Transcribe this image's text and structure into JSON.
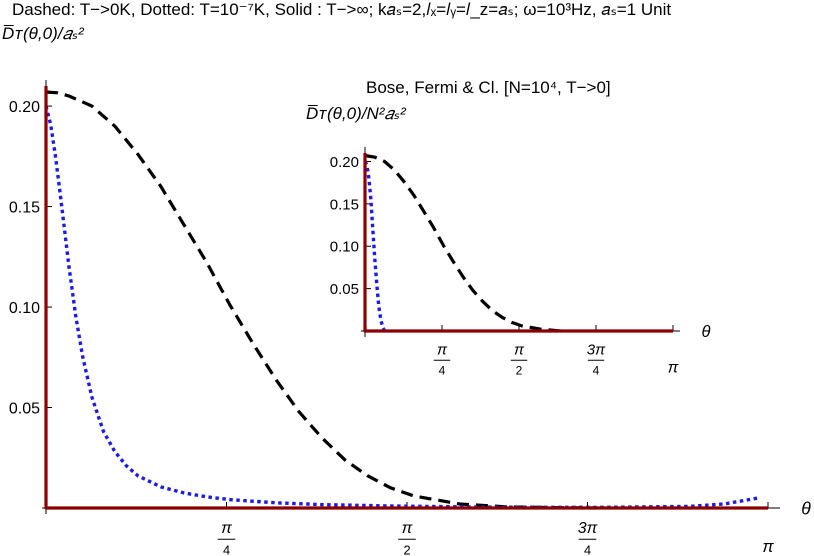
{
  "header": {
    "title": "Dashed: T−>0K, Dotted: T=10⁻⁷K, Solid : T−>∞; k𝑎ₛ=2,𝑙ₓ=𝑙ᵧ=𝑙_z=𝑎ₛ; ω=10³Hz, 𝑎ₛ=1 Unit",
    "ylabel": "D̅ᴛ(θ,0)/𝑎ₛ²"
  },
  "colors": {
    "dashed": "#000000",
    "dotted": "#1c1ce6",
    "solid": "#8b0000"
  },
  "chart_data": [
    {
      "type": "line",
      "title": "",
      "xlabel": "θ",
      "ylabel": "D̅ᴛ(θ,0)/𝑎ₛ²",
      "xlim": [
        0,
        3.1416
      ],
      "ylim": [
        0,
        0.21
      ],
      "xticks": [
        0.7854,
        1.5708,
        2.3562,
        3.1416
      ],
      "xticklabels": [
        "π/4",
        "π/2",
        "3π/4",
        "π"
      ],
      "yticks": [
        0.05,
        0.1,
        0.15,
        0.2
      ],
      "yticklabels": [
        "0.05",
        "0.10",
        "0.15",
        "0.20"
      ],
      "series": [
        {
          "style": "dashed",
          "x": [
            0,
            0.05,
            0.1,
            0.2,
            0.3,
            0.4,
            0.5,
            0.6,
            0.7,
            0.8,
            0.9,
            1.0,
            1.1,
            1.2,
            1.3,
            1.4,
            1.5,
            1.6,
            1.8,
            2.0,
            2.2,
            2.4
          ],
          "y": [
            0.207,
            0.2066,
            0.205,
            0.2,
            0.19,
            0.176,
            0.16,
            0.141,
            0.122,
            0.101,
            0.082,
            0.064,
            0.048,
            0.035,
            0.024,
            0.016,
            0.01,
            0.006,
            0.002,
            0.0006,
            0.0002,
            0.0
          ]
        },
        {
          "style": "dotted",
          "x": [
            0,
            0.02,
            0.04,
            0.06,
            0.08,
            0.1,
            0.13,
            0.16,
            0.2,
            0.25,
            0.3,
            0.35,
            0.4,
            0.5,
            0.6,
            0.7,
            0.8,
            1.0,
            1.2,
            1.5,
            1.8,
            2.0,
            2.4,
            2.8,
            2.95,
            3.05,
            3.1
          ],
          "y": [
            0.2,
            0.191,
            0.176,
            0.158,
            0.139,
            0.12,
            0.095,
            0.075,
            0.055,
            0.038,
            0.028,
            0.021,
            0.016,
            0.0105,
            0.0075,
            0.0055,
            0.0042,
            0.0026,
            0.0017,
            0.001,
            0.0006,
            0.0004,
            0.0003,
            0.0008,
            0.002,
            0.004,
            0.005
          ]
        },
        {
          "style": "solid",
          "x": [
            0,
            0.0001,
            3.1416
          ],
          "y": [
            0.21,
            0,
            0
          ]
        }
      ]
    },
    {
      "type": "line",
      "title": "Bose, Fermi   & Cl. [N=10⁴, T−>0]",
      "xlabel": "θ",
      "ylabel": "D̅ᴛ(θ,0)/N²𝑎ₛ²",
      "xlim": [
        0,
        3.1416
      ],
      "ylim": [
        0,
        0.21
      ],
      "xticks": [
        0.7854,
        1.5708,
        2.3562,
        3.1416
      ],
      "xticklabels": [
        "π/4",
        "π/2",
        "3π/4",
        "π"
      ],
      "yticks": [
        0.05,
        0.1,
        0.15,
        0.2
      ],
      "yticklabels": [
        "0.05",
        "0.10",
        "0.15",
        "0.20"
      ],
      "series": [
        {
          "style": "dashed",
          "x": [
            0,
            0.1,
            0.2,
            0.3,
            0.4,
            0.5,
            0.6,
            0.7,
            0.8,
            0.9,
            1.0,
            1.1,
            1.2,
            1.3,
            1.4,
            1.5,
            1.6,
            1.8,
            2.0
          ],
          "y": [
            0.207,
            0.205,
            0.2,
            0.19,
            0.176,
            0.16,
            0.141,
            0.122,
            0.101,
            0.082,
            0.064,
            0.048,
            0.035,
            0.024,
            0.016,
            0.01,
            0.006,
            0.002,
            0.0
          ]
        },
        {
          "style": "dotted",
          "x": [
            0,
            0.02,
            0.04,
            0.06,
            0.08,
            0.1,
            0.12,
            0.14,
            0.16,
            0.18,
            0.2
          ],
          "y": [
            0.2,
            0.195,
            0.18,
            0.155,
            0.12,
            0.085,
            0.055,
            0.03,
            0.014,
            0.005,
            0.0
          ]
        },
        {
          "style": "solid",
          "x": [
            0,
            0.0001,
            3.1416
          ],
          "y": [
            0.21,
            0,
            0
          ]
        }
      ]
    }
  ]
}
